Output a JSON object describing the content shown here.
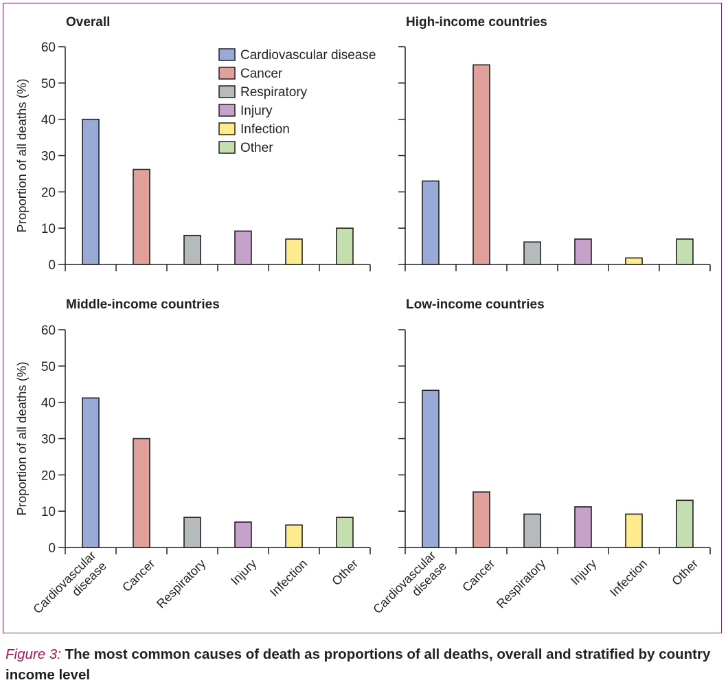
{
  "chart_data": [
    {
      "type": "bar",
      "title": "Overall",
      "categories": [
        "Cardiovascular disease",
        "Cancer",
        "Respiratory",
        "Injury",
        "Infection",
        "Other"
      ],
      "values": [
        40,
        26.2,
        8,
        9.2,
        7,
        10
      ],
      "ylabel": "Proportion of all deaths (%)",
      "ylim": [
        0,
        60
      ],
      "yticks": [
        0,
        10,
        20,
        30,
        40,
        50,
        60
      ],
      "legend_position": "top-right"
    },
    {
      "type": "bar",
      "title": "High-income countries",
      "categories": [
        "Cardiovascular disease",
        "Cancer",
        "Respiratory",
        "Injury",
        "Infection",
        "Other"
      ],
      "values": [
        23,
        55,
        6.2,
        7,
        1.8,
        7
      ],
      "ylim": [
        0,
        60
      ]
    },
    {
      "type": "bar",
      "title": "Middle-income countries",
      "categories": [
        "Cardiovascular disease",
        "Cancer",
        "Respiratory",
        "Injury",
        "Infection",
        "Other"
      ],
      "values": [
        41.2,
        30,
        8.3,
        7,
        6.2,
        8.3
      ],
      "ylabel": "Proportion of all deaths (%)",
      "ylim": [
        0,
        60
      ],
      "yticks": [
        0,
        10,
        20,
        30,
        40,
        50,
        60
      ]
    },
    {
      "type": "bar",
      "title": "Low-income countries",
      "categories": [
        "Cardiovascular disease",
        "Cancer",
        "Respiratory",
        "Injury",
        "Infection",
        "Other"
      ],
      "values": [
        43.3,
        15.3,
        9.2,
        11.2,
        9.2,
        13
      ],
      "ylim": [
        0,
        60
      ]
    }
  ],
  "legend": [
    {
      "label": "Cardiovascular disease",
      "color": "#9aaad6"
    },
    {
      "label": "Cancer",
      "color": "#e0a19b"
    },
    {
      "label": "Respiratory",
      "color": "#b5babd"
    },
    {
      "label": "Injury",
      "color": "#c6a1c9"
    },
    {
      "label": "Infection",
      "color": "#fdeb8d"
    },
    {
      "label": "Other",
      "color": "#c4deaf"
    }
  ],
  "x_tick_labels": {
    "lines": [
      [
        "Cardiovascular",
        "disease"
      ],
      [
        "Cancer"
      ],
      [
        "Respiratory"
      ],
      [
        "Injury"
      ],
      [
        "Infection"
      ],
      [
        "Other"
      ]
    ]
  },
  "caption": {
    "label": "Figure 3:",
    "text": " The most common causes of death as proportions of all deaths, overall and stratified by country income level"
  }
}
